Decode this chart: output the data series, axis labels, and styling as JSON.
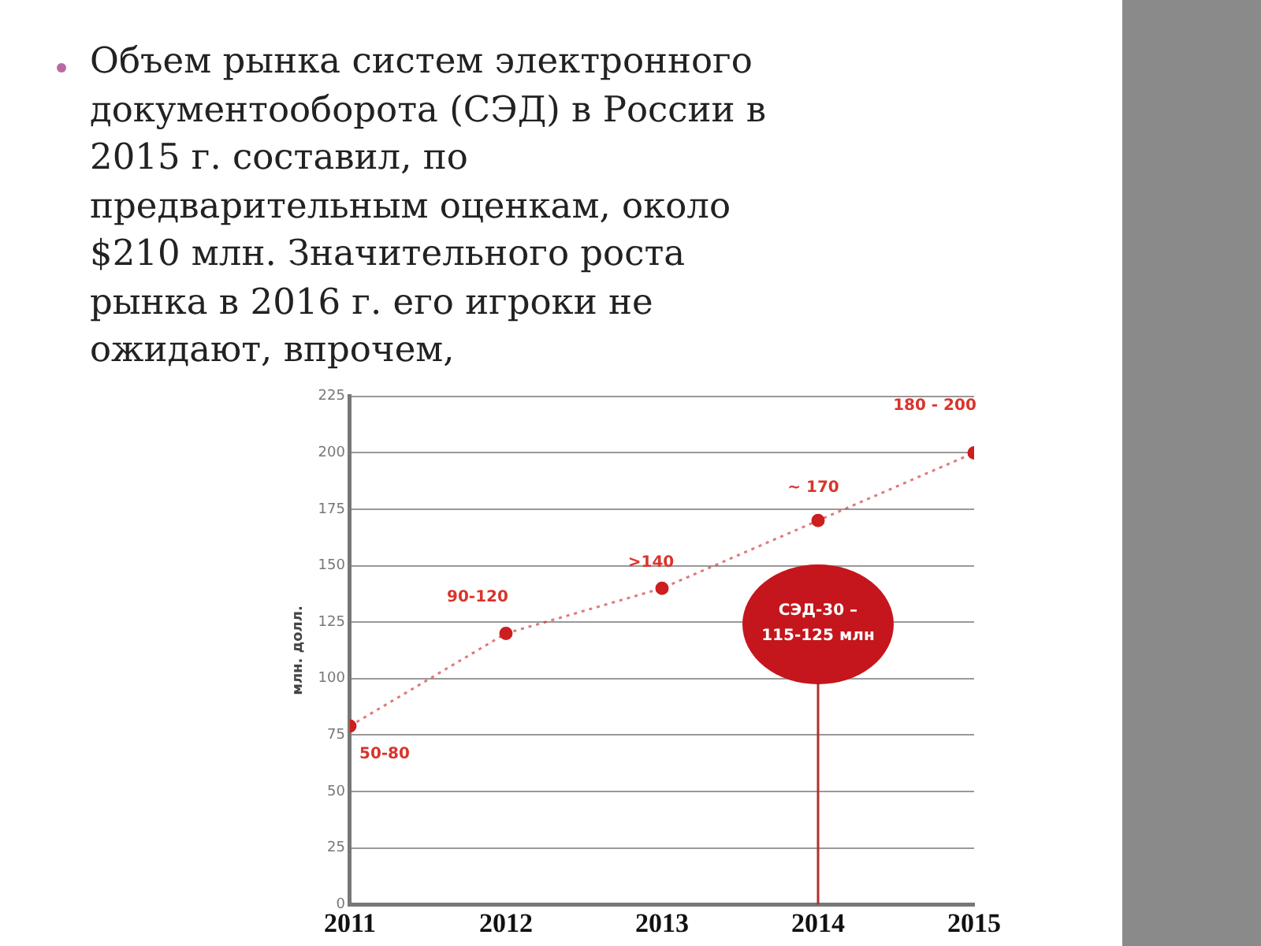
{
  "chart_data": {
    "type": "line",
    "title": "Объем рынка систем электронного документооборота (СЭД) в России в 2015 г. составил, по предварительным оценкам, около $210 млн. Значительного роста рынка в 2016 г. его игроки не ожидают, впрочем,",
    "ylabel": "млн. долл.",
    "x": [
      2011,
      2012,
      2013,
      2014,
      2015
    ],
    "series": [
      {
        "color": "#cc1f1f",
        "values": [
          79,
          120,
          140,
          170,
          200
        ]
      }
    ],
    "xlim": [
      2011,
      2015
    ],
    "xticks": [
      2011,
      2012,
      2013,
      2014,
      2015
    ],
    "ylim": [
      0,
      225
    ],
    "yticks": [
      0,
      25,
      50,
      75,
      100,
      125,
      150,
      175,
      200,
      225
    ],
    "grid": "y",
    "marker": "circle",
    "line_style": "dotted",
    "legend": false,
    "ref_lines": [
      {
        "axis": "x",
        "value": 2014,
        "label": "СЭД-30 – 115-125 млн",
        "color": "#b03030"
      }
    ],
    "annotations": [
      {
        "text": "50-80",
        "x": 2011,
        "y": 79
      },
      {
        "text": "90-120",
        "x": 2012,
        "y": 120
      },
      {
        "text": ">140",
        "x": 2013,
        "y": 140
      },
      {
        "text": "~ 170",
        "x": 2014,
        "y": 170
      },
      {
        "text": "180 - 200",
        "x": 2015,
        "y": 200
      }
    ]
  }
}
